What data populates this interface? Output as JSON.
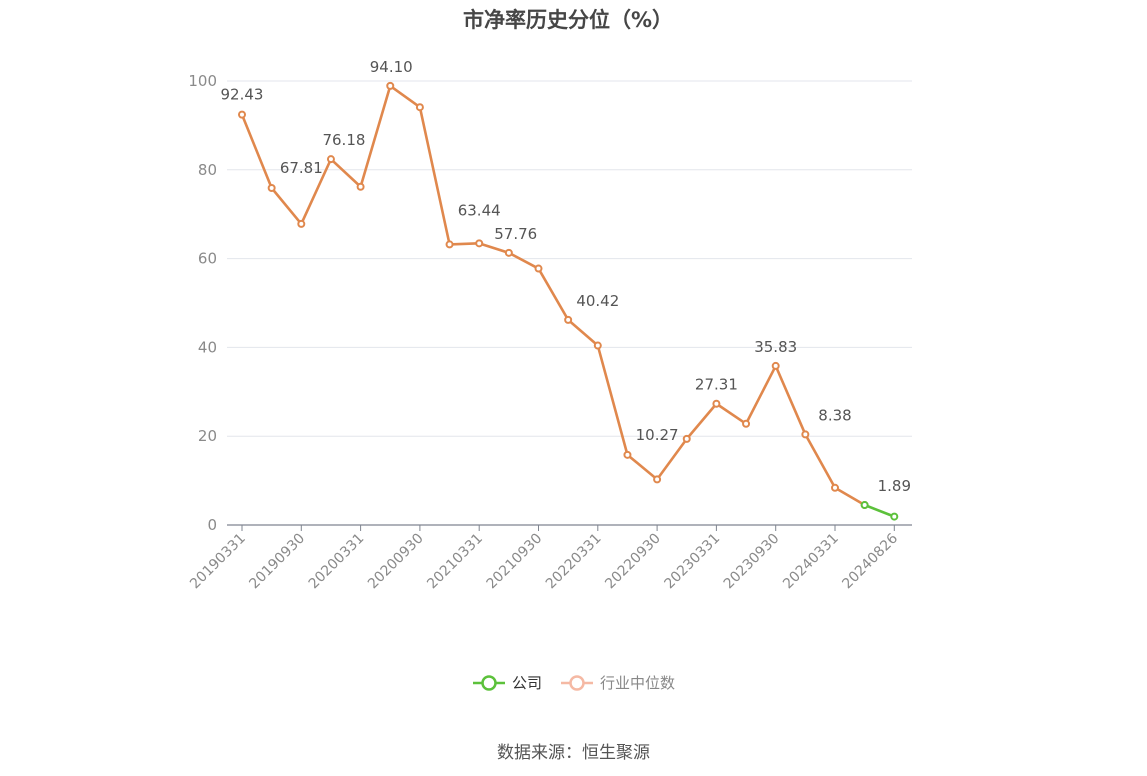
{
  "chart_data": {
    "type": "line",
    "title": "市净率历史分位（%）",
    "xlabel": "",
    "ylabel": "",
    "ylim": [
      0,
      100
    ],
    "yticks": [
      "0",
      "20",
      "40",
      "60",
      "80",
      "100"
    ],
    "x": [
      "20190331",
      "20190630",
      "20190930",
      "20191231",
      "20200331",
      "20200630",
      "20200930",
      "20201231",
      "20210331",
      "20210630",
      "20210930",
      "20211231",
      "20220331",
      "20220630",
      "20220930",
      "20221231",
      "20230331",
      "20230630",
      "20230930",
      "20231231",
      "20240331",
      "20240630",
      "20240826"
    ],
    "xtick_labels": [
      "20190331",
      "20190930",
      "20200331",
      "20200930",
      "20210331",
      "20210930",
      "20220331",
      "20220930",
      "20230331",
      "20230930",
      "20240331",
      "20240826"
    ],
    "series": [
      {
        "name": "公司",
        "color": "#5cc13b",
        "values": [
          null,
          null,
          null,
          null,
          null,
          null,
          null,
          null,
          null,
          null,
          null,
          null,
          null,
          null,
          null,
          null,
          null,
          null,
          null,
          null,
          null,
          4.5,
          1.89
        ]
      },
      {
        "name": "行业中位数",
        "color": "#e0884d",
        "values": [
          92.43,
          75.9,
          67.81,
          82.4,
          76.18,
          98.9,
          94.1,
          63.2,
          63.44,
          61.3,
          57.76,
          46.2,
          40.42,
          15.8,
          10.27,
          19.4,
          27.31,
          22.8,
          35.83,
          20.4,
          8.38,
          4.5,
          null
        ]
      }
    ],
    "data_labels": [
      {
        "label": "92.43"
      },
      {
        "label": "67.81"
      },
      {
        "label": "76.18"
      },
      {
        "label": "94.10"
      },
      {
        "label": "63.44"
      },
      {
        "label": "57.76"
      },
      {
        "label": "40.42"
      },
      {
        "label": "10.27"
      },
      {
        "label": "27.31"
      },
      {
        "label": "35.83"
      },
      {
        "label": "8.38"
      },
      {
        "label": "1.89"
      }
    ],
    "legend": [
      "公司",
      "行业中位数"
    ],
    "legend_position": "bottom",
    "grid": true
  },
  "legend_colors": {
    "company": "#5cc13b",
    "industry": "#f5b9a4"
  },
  "source": "数据来源：恒生聚源"
}
